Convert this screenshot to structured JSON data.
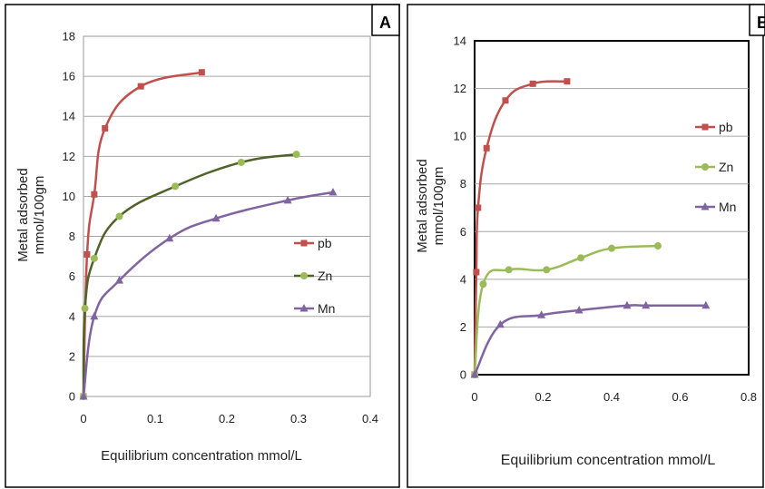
{
  "chart_data": [
    {
      "panel_label": "A",
      "type": "line",
      "xlabel": "Equilibrium concentration mmol/L",
      "ylabel_line1": "Metal adsorbed",
      "ylabel_line2": "mmol/100gm",
      "xlim": [
        0,
        0.4
      ],
      "ylim": [
        0,
        18
      ],
      "xticks": [
        "0",
        "0.1",
        "0.2",
        "0.3",
        "0.4"
      ],
      "xtick_values": [
        0,
        0.1,
        0.2,
        0.3,
        0.4
      ],
      "yticks": [
        "0",
        "2",
        "4",
        "6",
        "8",
        "10",
        "12",
        "14",
        "16",
        "18"
      ],
      "ytick_values": [
        0,
        2,
        4,
        6,
        8,
        10,
        12,
        14,
        16,
        18
      ],
      "grid": "horizontal",
      "legend_position": "right",
      "series": [
        {
          "name": "pb",
          "color": "#c0504d",
          "marker": "square",
          "points": [
            [
              0,
              0
            ],
            [
              0.005,
              7.1
            ],
            [
              0.015,
              10.1
            ],
            [
              0.03,
              13.4
            ],
            [
              0.08,
              15.5
            ],
            [
              0.165,
              16.2
            ]
          ]
        },
        {
          "name": "Zn",
          "color": "#4f6228",
          "marker_color": "#9bbb59",
          "marker": "circle",
          "points": [
            [
              0,
              0
            ],
            [
              0.002,
              4.4
            ],
            [
              0.015,
              6.9
            ],
            [
              0.05,
              9.0
            ],
            [
              0.128,
              10.5
            ],
            [
              0.22,
              11.7
            ],
            [
              0.297,
              12.1
            ]
          ]
        },
        {
          "name": "Mn",
          "color": "#8064a2",
          "marker": "triangle",
          "points": [
            [
              0,
              0
            ],
            [
              0.015,
              4.0
            ],
            [
              0.05,
              5.8
            ],
            [
              0.12,
              7.9
            ],
            [
              0.185,
              8.9
            ],
            [
              0.285,
              9.8
            ],
            [
              0.348,
              10.2
            ]
          ]
        }
      ]
    },
    {
      "panel_label": "B",
      "type": "line",
      "xlabel": "Equilibrium concentration mmol/L",
      "ylabel_line1": "Metal adsorbed",
      "ylabel_line2": "mmol/100gm",
      "xlim": [
        0,
        0.8
      ],
      "ylim": [
        0,
        14
      ],
      "xticks": [
        "0",
        "0.2",
        "0.4",
        "0.6",
        "0.8"
      ],
      "xtick_values": [
        0,
        0.2,
        0.4,
        0.6,
        0.8
      ],
      "yticks": [
        "0",
        "2",
        "4",
        "6",
        "8",
        "10",
        "12",
        "14"
      ],
      "ytick_values": [
        0,
        2,
        4,
        6,
        8,
        10,
        12,
        14
      ],
      "grid": "horizontal",
      "legend_position": "right",
      "series": [
        {
          "name": "pb",
          "color": "#c0504d",
          "marker": "square",
          "points": [
            [
              0,
              0
            ],
            [
              0.005,
              4.3
            ],
            [
              0.01,
              7.0
            ],
            [
              0.035,
              9.5
            ],
            [
              0.09,
              11.5
            ],
            [
              0.17,
              12.2
            ],
            [
              0.27,
              12.3
            ]
          ]
        },
        {
          "name": "Zn",
          "color": "#9bbb59",
          "marker": "circle",
          "points": [
            [
              0,
              0
            ],
            [
              0.025,
              3.8
            ],
            [
              0.1,
              4.4
            ],
            [
              0.21,
              4.4
            ],
            [
              0.31,
              4.9
            ],
            [
              0.4,
              5.3
            ],
            [
              0.535,
              5.4
            ]
          ]
        },
        {
          "name": "Mn",
          "color": "#8064a2",
          "marker": "triangle",
          "points": [
            [
              0,
              0
            ],
            [
              0.075,
              2.1
            ],
            [
              0.195,
              2.5
            ],
            [
              0.305,
              2.7
            ],
            [
              0.445,
              2.9
            ],
            [
              0.5,
              2.9
            ],
            [
              0.675,
              2.9
            ]
          ]
        }
      ]
    }
  ]
}
